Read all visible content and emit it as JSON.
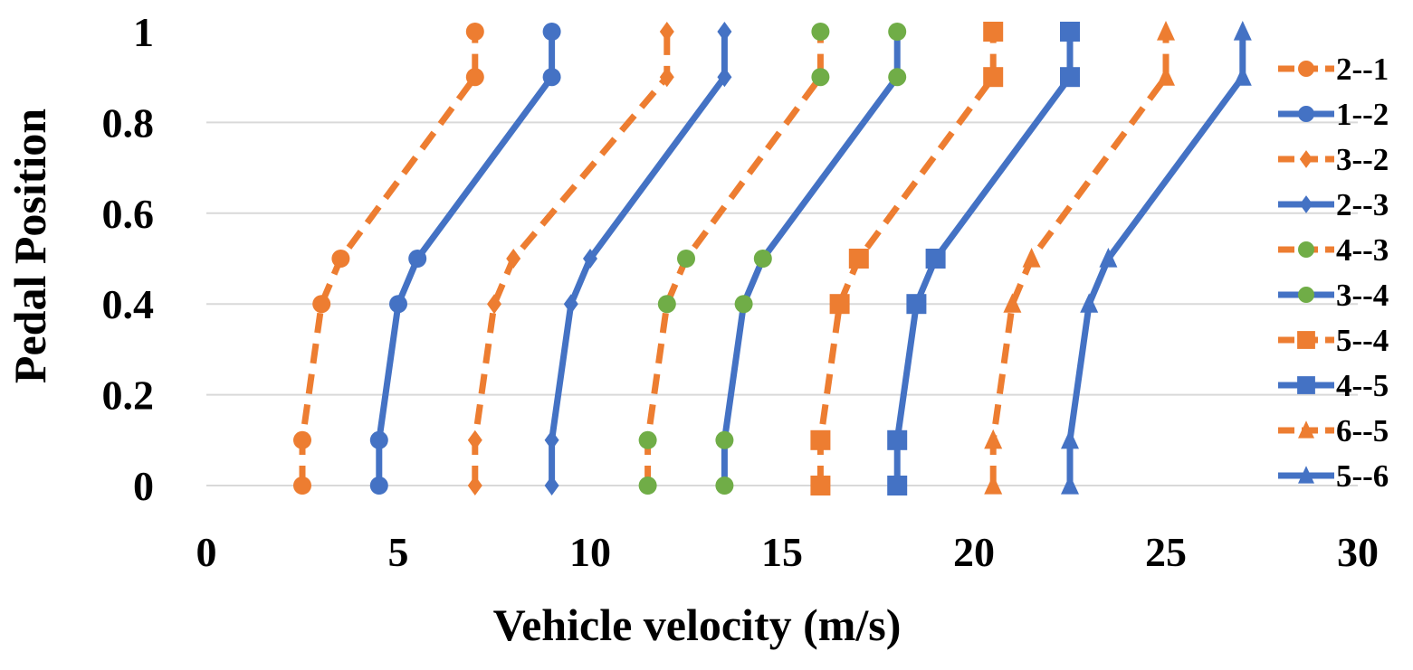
{
  "chart_data": {
    "type": "line",
    "title": "",
    "xlabel": "Vehicle velocity (m/s)",
    "ylabel": "Pedal Position",
    "xlim": [
      0,
      30
    ],
    "ylim": [
      0,
      1
    ],
    "x_ticks": [
      0,
      5,
      10,
      15,
      20,
      25,
      30
    ],
    "x_tick_labels": [
      "0",
      "5",
      "10",
      "15",
      "20",
      "25",
      "30"
    ],
    "y_ticks": [
      0,
      0.2,
      0.4,
      0.6,
      0.8,
      1
    ],
    "y_tick_labels": [
      "0",
      "0.2",
      "0.4",
      "0.6",
      "0.8",
      "1"
    ],
    "grid": "horizontal",
    "legend_position": "right",
    "y": [
      0,
      0.1,
      0.4,
      0.5,
      0.9,
      1
    ],
    "series": [
      {
        "name": "2--1",
        "color": "#ED7D31",
        "dash": true,
        "marker": "circle",
        "x": [
          2.5,
          2.5,
          3.0,
          3.5,
          7.0,
          7.0
        ]
      },
      {
        "name": "1--2",
        "color": "#4472C4",
        "dash": false,
        "marker": "circle",
        "x": [
          4.5,
          4.5,
          5.0,
          5.5,
          9.0,
          9.0
        ]
      },
      {
        "name": "3--2",
        "color": "#ED7D31",
        "dash": true,
        "marker": "diamond",
        "x": [
          7.0,
          7.0,
          7.5,
          8.0,
          12.0,
          12.0
        ]
      },
      {
        "name": "2--3",
        "color": "#4472C4",
        "dash": false,
        "marker": "diamond",
        "x": [
          9.0,
          9.0,
          9.5,
          10.0,
          13.5,
          13.5
        ]
      },
      {
        "name": "4--3",
        "color": "#ED7D31",
        "dash": true,
        "marker": "dot-green",
        "x": [
          11.5,
          11.5,
          12.0,
          12.5,
          16.0,
          16.0
        ]
      },
      {
        "name": "3--4",
        "color": "#4472C4",
        "dash": false,
        "marker": "dot-green",
        "x": [
          13.5,
          13.5,
          14.0,
          14.5,
          18.0,
          18.0
        ]
      },
      {
        "name": "5--4",
        "color": "#ED7D31",
        "dash": true,
        "marker": "square",
        "x": [
          16.0,
          16.0,
          16.5,
          17.0,
          20.5,
          20.5
        ]
      },
      {
        "name": "4--5",
        "color": "#4472C4",
        "dash": false,
        "marker": "square",
        "x": [
          18.0,
          18.0,
          18.5,
          19.0,
          22.5,
          22.5
        ]
      },
      {
        "name": "6--5",
        "color": "#ED7D31",
        "dash": true,
        "marker": "triangle",
        "x": [
          20.5,
          20.5,
          21.0,
          21.5,
          25.0,
          25.0
        ]
      },
      {
        "name": "5--6",
        "color": "#4472C4",
        "dash": false,
        "marker": "triangle",
        "x": [
          22.5,
          22.5,
          23.0,
          23.5,
          27.0,
          27.0
        ]
      }
    ],
    "marker_colors": {
      "green": "#70AD47"
    }
  }
}
